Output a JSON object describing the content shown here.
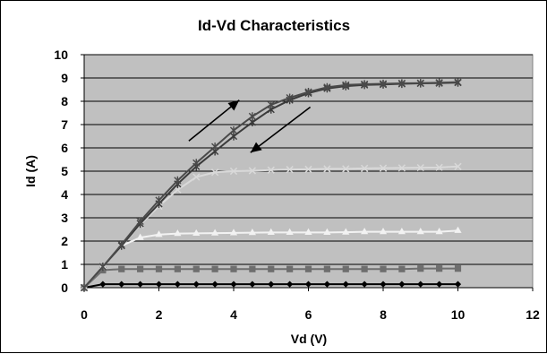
{
  "chart_data": {
    "type": "line",
    "title": "Id-Vd Characteristics",
    "xlabel": "Vd (V)",
    "ylabel": "Id (A)",
    "xlim": [
      0,
      12
    ],
    "ylim": [
      0,
      10
    ],
    "x_ticks": [
      "0",
      "2",
      "4",
      "6",
      "8",
      "10",
      "12"
    ],
    "y_ticks": [
      "0",
      "1",
      "2",
      "3",
      "4",
      "5",
      "6",
      "7",
      "8",
      "9",
      "10"
    ],
    "grid": "horizontal",
    "plot_background": "#c0c0c0",
    "x": [
      0,
      0.5,
      1,
      1.5,
      2,
      2.5,
      3,
      3.5,
      4,
      4.5,
      5,
      5.5,
      6,
      6.5,
      7,
      7.5,
      8,
      8.5,
      9,
      9.5,
      10
    ],
    "series": [
      {
        "color": "#000000",
        "marker": "diamond",
        "values": [
          0,
          0.15,
          0.15,
          0.15,
          0.15,
          0.15,
          0.15,
          0.15,
          0.15,
          0.15,
          0.15,
          0.15,
          0.15,
          0.15,
          0.15,
          0.15,
          0.15,
          0.15,
          0.15,
          0.15,
          0.15
        ]
      },
      {
        "color": "#6e6e6e",
        "marker": "square",
        "values": [
          0,
          0.75,
          0.8,
          0.8,
          0.8,
          0.8,
          0.8,
          0.8,
          0.8,
          0.8,
          0.8,
          0.8,
          0.8,
          0.8,
          0.8,
          0.8,
          0.8,
          0.8,
          0.82,
          0.82,
          0.82
        ]
      },
      {
        "color": "#f2f2f2",
        "marker": "triangle",
        "values": [
          0,
          0.9,
          1.8,
          2.15,
          2.28,
          2.32,
          2.33,
          2.34,
          2.35,
          2.36,
          2.37,
          2.37,
          2.37,
          2.37,
          2.38,
          2.4,
          2.4,
          2.4,
          2.4,
          2.4,
          2.45
        ]
      },
      {
        "color": "#d9d9d9",
        "marker": "x",
        "values": [
          0,
          0.9,
          1.8,
          2.7,
          3.5,
          4.2,
          4.75,
          4.95,
          5.0,
          5.02,
          5.05,
          5.07,
          5.08,
          5.1,
          5.1,
          5.12,
          5.13,
          5.14,
          5.15,
          5.16,
          5.2
        ]
      },
      {
        "color": "#3a3a3a",
        "marker": "star",
        "values": [
          0,
          0.9,
          1.8,
          2.75,
          3.6,
          4.45,
          5.2,
          5.85,
          6.5,
          7.1,
          7.65,
          8.05,
          8.35,
          8.55,
          8.65,
          8.7,
          8.72,
          8.75,
          8.77,
          8.78,
          8.8
        ]
      },
      {
        "color": "#4a4a4a",
        "marker": "star",
        "values": [
          0,
          0.9,
          1.85,
          2.85,
          3.75,
          4.6,
          5.35,
          6.05,
          6.75,
          7.35,
          7.85,
          8.15,
          8.4,
          8.6,
          8.7,
          8.73,
          8.75,
          8.77,
          8.78,
          8.8,
          8.82
        ]
      }
    ],
    "annotations": [
      {
        "type": "arrow",
        "from": [
          2.8,
          6.3
        ],
        "to": [
          4.15,
          8.05
        ]
      },
      {
        "type": "arrow",
        "from": [
          6.05,
          7.75
        ],
        "to": [
          4.45,
          5.8
        ]
      }
    ]
  }
}
